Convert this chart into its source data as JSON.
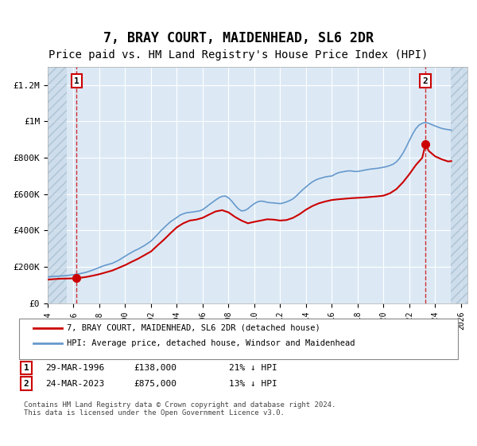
{
  "title": "7, BRAY COURT, MAIDENHEAD, SL6 2DR",
  "subtitle": "Price paid vs. HM Land Registry's House Price Index (HPI)",
  "ylabel": "",
  "xlabel": "",
  "xlim": [
    1994.0,
    2026.5
  ],
  "ylim": [
    0,
    1300000
  ],
  "yticks": [
    0,
    200000,
    400000,
    600000,
    800000,
    1000000,
    1200000
  ],
  "ytick_labels": [
    "£0",
    "£200K",
    "£400K",
    "£600K",
    "£800K",
    "£1M",
    "£1.2M"
  ],
  "title_fontsize": 12,
  "subtitle_fontsize": 10,
  "bg_color": "#dce9f5",
  "hatch_color": "#b0c4d8",
  "grid_color": "#ffffff",
  "legend_label_red": "7, BRAY COURT, MAIDENHEAD, SL6 2DR (detached house)",
  "legend_label_blue": "HPI: Average price, detached house, Windsor and Maidenhead",
  "transaction1_date": "29-MAR-1996",
  "transaction1_price": "£138,000",
  "transaction1_hpi": "21% ↓ HPI",
  "transaction1_year": 1996.24,
  "transaction1_value": 138000,
  "transaction2_date": "24-MAR-2023",
  "transaction2_price": "£875,000",
  "transaction2_hpi": "13% ↓ HPI",
  "transaction2_year": 2023.24,
  "transaction2_value": 875000,
  "hatch_left_end": 1995.5,
  "hatch_right_start": 2025.2,
  "footnote": "Contains HM Land Registry data © Crown copyright and database right 2024.\nThis data is licensed under the Open Government Licence v3.0.",
  "hpi_x": [
    1994,
    1994.25,
    1994.5,
    1994.75,
    1995,
    1995.25,
    1995.5,
    1995.75,
    1996,
    1996.25,
    1996.5,
    1996.75,
    1997,
    1997.25,
    1997.5,
    1997.75,
    1998,
    1998.25,
    1998.5,
    1998.75,
    1999,
    1999.25,
    1999.5,
    1999.75,
    2000,
    2000.25,
    2000.5,
    2000.75,
    2001,
    2001.25,
    2001.5,
    2001.75,
    2002,
    2002.25,
    2002.5,
    2002.75,
    2003,
    2003.25,
    2003.5,
    2003.75,
    2004,
    2004.25,
    2004.5,
    2004.75,
    2005,
    2005.25,
    2005.5,
    2005.75,
    2006,
    2006.25,
    2006.5,
    2006.75,
    2007,
    2007.25,
    2007.5,
    2007.75,
    2008,
    2008.25,
    2008.5,
    2008.75,
    2009,
    2009.25,
    2009.5,
    2009.75,
    2010,
    2010.25,
    2010.5,
    2010.75,
    2011,
    2011.25,
    2011.5,
    2011.75,
    2012,
    2012.25,
    2012.5,
    2012.75,
    2013,
    2013.25,
    2013.5,
    2013.75,
    2014,
    2014.25,
    2014.5,
    2014.75,
    2015,
    2015.25,
    2015.5,
    2015.75,
    2016,
    2016.25,
    2016.5,
    2016.75,
    2017,
    2017.25,
    2017.5,
    2017.75,
    2018,
    2018.25,
    2018.5,
    2018.75,
    2019,
    2019.25,
    2019.5,
    2019.75,
    2020,
    2020.25,
    2020.5,
    2020.75,
    2021,
    2021.25,
    2021.5,
    2021.75,
    2022,
    2022.25,
    2022.5,
    2022.75,
    2023,
    2023.25,
    2023.5,
    2023.75,
    2024,
    2024.25,
    2024.5,
    2024.75,
    2025,
    2025.25
  ],
  "hpi_y": [
    145000,
    147000,
    148000,
    149000,
    150000,
    151000,
    153000,
    155000,
    157000,
    160000,
    163000,
    167000,
    171000,
    177000,
    183000,
    190000,
    197000,
    204000,
    210000,
    215000,
    220000,
    228000,
    237000,
    248000,
    259000,
    270000,
    280000,
    290000,
    298000,
    308000,
    318000,
    330000,
    342000,
    360000,
    378000,
    398000,
    415000,
    432000,
    448000,
    460000,
    472000,
    485000,
    492000,
    498000,
    500000,
    502000,
    505000,
    508000,
    515000,
    528000,
    542000,
    555000,
    568000,
    580000,
    588000,
    590000,
    580000,
    562000,
    540000,
    520000,
    508000,
    510000,
    520000,
    535000,
    548000,
    558000,
    562000,
    560000,
    555000,
    553000,
    552000,
    550000,
    548000,
    552000,
    558000,
    565000,
    575000,
    590000,
    608000,
    625000,
    640000,
    655000,
    668000,
    678000,
    685000,
    690000,
    695000,
    698000,
    700000,
    710000,
    718000,
    722000,
    725000,
    728000,
    728000,
    725000,
    725000,
    728000,
    732000,
    735000,
    738000,
    740000,
    742000,
    745000,
    748000,
    752000,
    758000,
    765000,
    778000,
    798000,
    825000,
    858000,
    895000,
    930000,
    960000,
    980000,
    990000,
    995000,
    990000,
    982000,
    975000,
    968000,
    962000,
    958000,
    955000,
    952000
  ],
  "price_x": [
    1994,
    1994.5,
    1995,
    1995.5,
    1996,
    1996.25,
    1996.5,
    1997,
    1997.5,
    1998,
    1998.5,
    1999,
    1999.5,
    2000,
    2000.5,
    2001,
    2001.5,
    2002,
    2002.5,
    2003,
    2003.5,
    2004,
    2004.5,
    2005,
    2005.5,
    2006,
    2006.5,
    2007,
    2007.5,
    2008,
    2008.5,
    2009,
    2009.5,
    2010,
    2010.5,
    2011,
    2011.5,
    2012,
    2012.5,
    2013,
    2013.5,
    2014,
    2014.5,
    2015,
    2015.5,
    2016,
    2016.5,
    2017,
    2017.5,
    2018,
    2018.5,
    2019,
    2019.5,
    2020,
    2020.5,
    2021,
    2021.5,
    2022,
    2022.5,
    2023,
    2023.25,
    2023.5,
    2024,
    2024.5,
    2025,
    2025.25
  ],
  "price_y": [
    130000,
    133000,
    135000,
    136000,
    137000,
    138000,
    140000,
    145000,
    152000,
    160000,
    170000,
    180000,
    195000,
    210000,
    228000,
    245000,
    265000,
    285000,
    318000,
    350000,
    385000,
    418000,
    440000,
    455000,
    460000,
    470000,
    488000,
    505000,
    512000,
    500000,
    475000,
    455000,
    440000,
    448000,
    455000,
    462000,
    460000,
    455000,
    458000,
    470000,
    490000,
    515000,
    535000,
    550000,
    560000,
    568000,
    572000,
    575000,
    578000,
    580000,
    582000,
    585000,
    588000,
    592000,
    605000,
    628000,
    665000,
    710000,
    760000,
    800000,
    875000,
    838000,
    808000,
    792000,
    780000,
    782000
  ],
  "red_color": "#cc0000",
  "blue_color": "#6699cc",
  "xtick_years": [
    1994,
    1996,
    1998,
    2000,
    2002,
    2004,
    2006,
    2008,
    2010,
    2012,
    2014,
    2016,
    2018,
    2020,
    2022,
    2024,
    2026
  ]
}
